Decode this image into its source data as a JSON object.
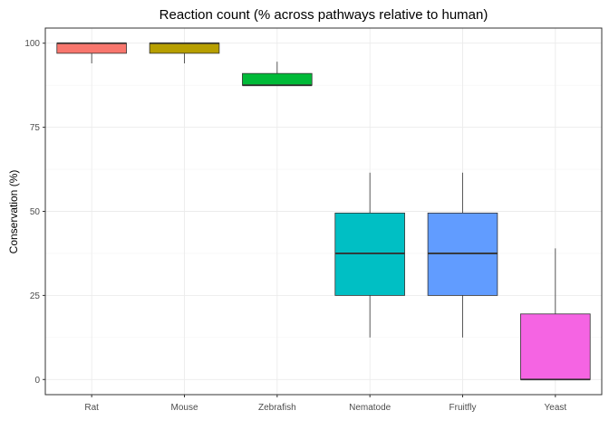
{
  "chart_data": {
    "type": "boxplot",
    "title": "Reaction count (% across pathways relative to human)",
    "xlabel": "",
    "ylabel": "Conservation (%)",
    "ylim": [
      -4.5,
      104.5
    ],
    "yticks": [
      0,
      25,
      50,
      75,
      100
    ],
    "grid": true,
    "categories": [
      "Rat",
      "Mouse",
      "Zebrafish",
      "Nematode",
      "Fruitfly",
      "Yeast"
    ],
    "colors": [
      "#F8766D",
      "#B79F00",
      "#00BA38",
      "#00BFC4",
      "#619CFF",
      "#F564E3"
    ],
    "boxes": [
      {
        "name": "Rat",
        "whisker_low": 94,
        "q1": 97,
        "median": 100,
        "q3": 100,
        "whisker_high": 100
      },
      {
        "name": "Mouse",
        "whisker_low": 94,
        "q1": 97,
        "median": 100,
        "q3": 100,
        "whisker_high": 100
      },
      {
        "name": "Zebrafish",
        "whisker_low": 87.5,
        "q1": 87.5,
        "median": 87.5,
        "q3": 91,
        "whisker_high": 94.5
      },
      {
        "name": "Nematode",
        "whisker_low": 12.5,
        "q1": 25,
        "median": 37.5,
        "q3": 49.5,
        "whisker_high": 61.5
      },
      {
        "name": "Fruitfly",
        "whisker_low": 12.5,
        "q1": 25,
        "median": 37.5,
        "q3": 49.5,
        "whisker_high": 61.5
      },
      {
        "name": "Yeast",
        "whisker_low": 0,
        "q1": 0,
        "median": 0,
        "q3": 19.5,
        "whisker_high": 39
      }
    ]
  }
}
